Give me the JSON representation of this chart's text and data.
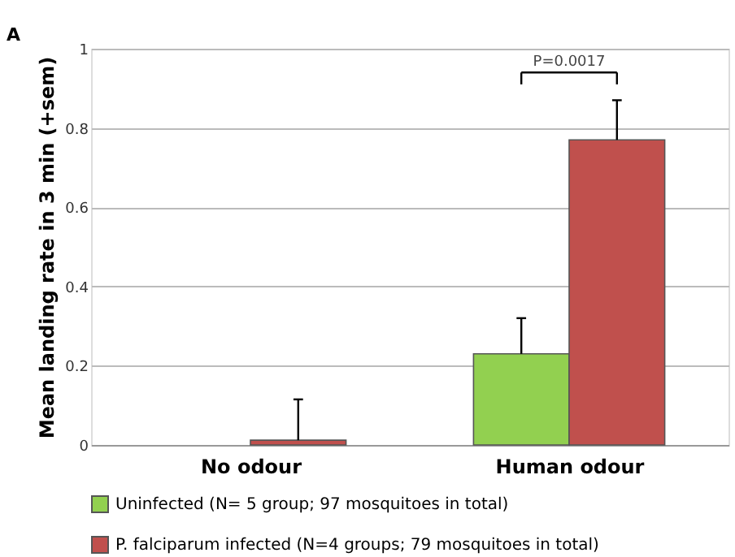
{
  "chart_data": {
    "type": "bar",
    "ylabel": "Mean landing rate in 3 min (+sem)",
    "categories": [
      "No odour",
      "Human odour"
    ],
    "series": [
      {
        "name": "Uninfected (N= 5 group; 97 mosquitoes in total)",
        "color": "#92d050",
        "values": [
          0,
          0.23
        ],
        "errors": [
          null,
          [
            0.23,
            0.32
          ]
        ]
      },
      {
        "name": "P. falciparum infected (N=4 groups; 79 mosquitoes in total)",
        "color": "#c0504d",
        "values": [
          0.012,
          0.77
        ],
        "errors": [
          [
            0.012,
            0.115
          ],
          [
            0.77,
            0.87
          ]
        ]
      }
    ],
    "ylim": [
      0,
      1
    ],
    "yticks": [
      0,
      0.2,
      0.4,
      0.6,
      0.8,
      1
    ],
    "grid": "y",
    "legend": "bottom",
    "annotations": [
      "A",
      "P=0.0017"
    ]
  }
}
